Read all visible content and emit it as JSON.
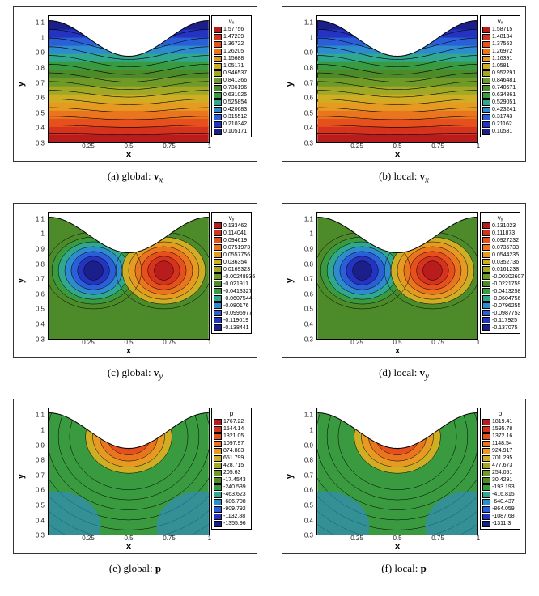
{
  "axes": {
    "xlabel": "x",
    "ylabel": "y",
    "xticks": [
      0.25,
      0.5,
      0.75,
      1
    ],
    "yticks": [
      0.3,
      0.4,
      0.5,
      0.6,
      0.7,
      0.8,
      0.9,
      1,
      1.1
    ],
    "xlim": [
      0.0,
      1.0
    ],
    "ylim": [
      0.3,
      1.15
    ]
  },
  "palette15": [
    "#1b1f8a",
    "#2433c0",
    "#2a5fd8",
    "#2e8bce",
    "#2fa88f",
    "#3a9a3f",
    "#4c8a2a",
    "#6f9a28",
    "#a0a826",
    "#cfae24",
    "#e69a22",
    "#e9751f",
    "#e6501d",
    "#d6331e",
    "#b81c1c"
  ],
  "panels": [
    {
      "id": "a",
      "caption_pre": "(a) global: ",
      "sym": "v",
      "sub": "x",
      "legend_title": "vₓ",
      "type": "stratified",
      "values": [
        "1.57756",
        "1.47239",
        "1.36722",
        "1.26205",
        "1.15688",
        "1.05171",
        "0.946537",
        "0.841366",
        "0.736196",
        "0.631025",
        "0.525854",
        "0.420683",
        "0.315512",
        "0.210342",
        "0.105171"
      ]
    },
    {
      "id": "b",
      "caption_pre": "(b) local: ",
      "sym": "v",
      "sub": "x",
      "legend_title": "vₓ",
      "type": "stratified",
      "values": [
        "1.58715",
        "1.48134",
        "1.37553",
        "1.26972",
        "1.16391",
        "1.0581",
        "0.952291",
        "0.846481",
        "0.740671",
        "0.634861",
        "0.529051",
        "0.423241",
        "0.31743",
        "0.21162",
        "0.10581"
      ]
    },
    {
      "id": "c",
      "caption_pre": "(c) global: ",
      "sym": "v",
      "sub": "y",
      "legend_title": "vᵧ",
      "type": "dipole",
      "values": [
        "0.133462",
        "0.114041",
        "0.094619",
        "0.0751973",
        "0.0557756",
        "0.036354",
        "0.0169323",
        "-0.00248936",
        "-0.021911",
        "-0.0413327",
        "-0.0607544",
        "-0.080176",
        "-0.0995977",
        "-0.119019",
        "-0.138441"
      ]
    },
    {
      "id": "d",
      "caption_pre": "(d) local: ",
      "sym": "v",
      "sub": "y",
      "legend_title": "vᵧ",
      "type": "dipole",
      "values": [
        "0.131023",
        "0.111873",
        "0.0927232",
        "0.0735733",
        "0.0544235",
        "0.0352736",
        "0.0161238",
        "-0.00302607",
        "-0.0221759",
        "-0.0413258",
        "-0.0604756",
        "-0.0796255",
        "-0.0987753",
        "-0.117925",
        "-0.137075"
      ]
    },
    {
      "id": "e",
      "caption_pre": "(e) global: ",
      "sym": "p",
      "sub": "",
      "legend_title": "p",
      "type": "pressure",
      "values": [
        "1767.22",
        "1544.14",
        "1321.05",
        "1097.97",
        "874.883",
        "651.799",
        "428.715",
        "205.63",
        "-17.4543",
        "-240.539",
        "-463.623",
        "-686.708",
        "-909.792",
        "-1132.88",
        "-1355.96"
      ]
    },
    {
      "id": "f",
      "caption_pre": "(f) local: ",
      "sym": "p",
      "sub": "",
      "legend_title": "p",
      "type": "pressure",
      "values": [
        "1819.41",
        "1595.78",
        "1372.16",
        "1148.54",
        "924.917",
        "701.295",
        "477.673",
        "254.051",
        "30.4291",
        "-193.193",
        "-416.815",
        "-640.437",
        "-864.059",
        "-1087.68",
        "-1311.3"
      ]
    }
  ]
}
